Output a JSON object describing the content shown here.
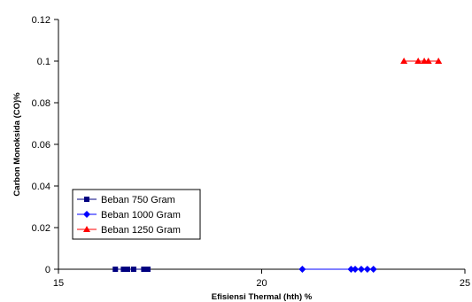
{
  "chart_data": {
    "type": "scatter",
    "title": "",
    "xlabel": "Efisiensi Thermal (hth) %",
    "ylabel": "Carbon Monoksida (CO)%",
    "xlim": [
      15,
      25
    ],
    "ylim": [
      0,
      0.12
    ],
    "xticks": [
      "15",
      "20",
      "25"
    ],
    "yticks": [
      "0",
      "0.02",
      "0.04",
      "0.06",
      "0.08",
      "0.1",
      "0.12"
    ],
    "grid": false,
    "legend_position": "lower-left",
    "series": [
      {
        "name": "Beban 750 Gram",
        "color": "#000080",
        "marker": "square",
        "x": [
          16.4,
          16.6,
          16.7,
          16.85,
          17.1,
          17.2
        ],
        "y": [
          0,
          0,
          0,
          0,
          0,
          0
        ]
      },
      {
        "name": "Beban 1000 Gram",
        "color": "#0000ff",
        "marker": "diamond",
        "x": [
          21.0,
          22.2,
          22.3,
          22.45,
          22.6,
          22.75
        ],
        "y": [
          0,
          0,
          0,
          0,
          0,
          0
        ]
      },
      {
        "name": "Beban 1250 Gram",
        "color": "#ff0000",
        "marker": "triangle",
        "x": [
          23.5,
          23.85,
          24.0,
          24.1,
          24.35
        ],
        "y": [
          0.1,
          0.1,
          0.1,
          0.1,
          0.1
        ]
      }
    ]
  }
}
